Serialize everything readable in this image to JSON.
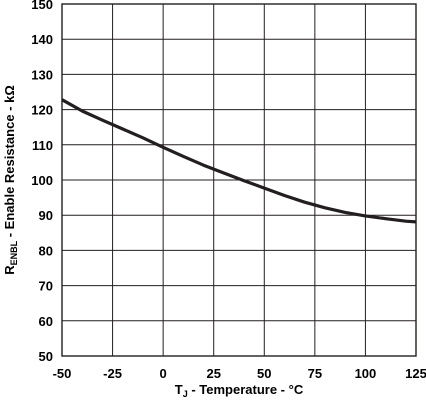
{
  "chart_data": {
    "type": "line",
    "xlabel": {
      "main": "T",
      "sub": "J",
      "rest": " - Temperature - °C"
    },
    "ylabel": {
      "main": "R",
      "sub": "ENBL",
      "rest": " - Enable Resistance - kΩ"
    },
    "xlim": [
      -50,
      125
    ],
    "ylim": [
      50,
      150
    ],
    "xticks": [
      -50,
      -25,
      0,
      25,
      50,
      75,
      100,
      125
    ],
    "yticks": [
      50,
      60,
      70,
      80,
      90,
      100,
      110,
      120,
      130,
      140,
      150
    ],
    "grid": true,
    "series": [
      {
        "color": "#231f20",
        "x": [
          -50,
          -40,
          -30,
          -20,
          -10,
          0,
          10,
          20,
          30,
          40,
          50,
          60,
          70,
          80,
          90,
          100,
          110,
          120,
          125
        ],
        "y": [
          122.8,
          119.6,
          117.0,
          114.5,
          112.0,
          109.3,
          106.7,
          104.2,
          102.0,
          99.8,
          97.7,
          95.6,
          93.7,
          92.1,
          90.8,
          89.8,
          89.0,
          88.3,
          88.1
        ]
      }
    ]
  }
}
